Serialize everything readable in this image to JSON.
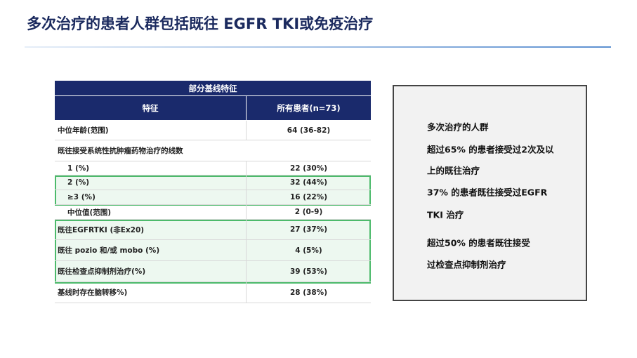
{
  "title": "多次治疗的患者人群包括既往 EGFR TKI或免疫治疗",
  "table": {
    "caption": "部分基线特征",
    "columns": [
      "特征",
      "所有患者(n=73)"
    ],
    "rows": [
      [
        "中位年龄(范围)",
        "64 (36-82)"
      ],
      [
        "既往接受系统性抗肿瘤药物治疗的线数"
      ],
      [
        "1 (%)",
        "22 (30%)"
      ],
      [
        "2 (%)",
        "32 (44%)"
      ],
      [
        "≥3  (%)",
        "16 (22%)"
      ],
      [
        "中位值(范围)",
        "2 (0-9)"
      ],
      [
        "既往EGFRTKI (非Ex20)",
        "27 (37%)"
      ],
      [
        "既往 pozio 和/或 mobo  (%)",
        "4 (5%)"
      ],
      [
        "既往检查点抑制剂治疗(%)",
        "39 (53%)"
      ],
      [
        "基线时存在脑转移%)",
        "28 (38%)"
      ]
    ]
  },
  "summary": {
    "lines": [
      "多次治疗的人群",
      "超过65% 的患者接受过2次及以",
      "上的既往治疗",
      "37% 的患者既往接受过EGFR",
      "TKI 治疗",
      "超过50% 的患者既往接受",
      "过检查点抑制剂治疗"
    ]
  }
}
